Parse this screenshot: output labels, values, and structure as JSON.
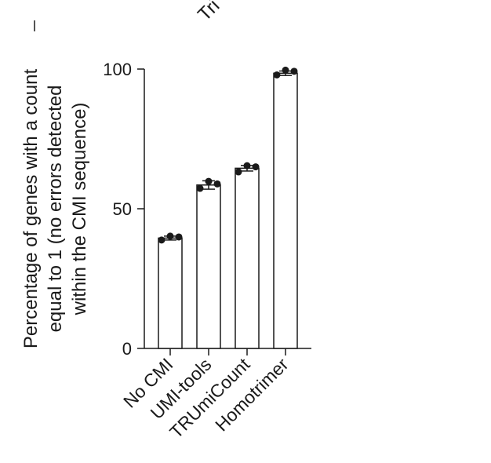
{
  "top_fragment": "Tri",
  "chart_data": {
    "type": "bar",
    "title": "",
    "xlabel": "",
    "ylabel_lines": [
      "Percentage of genes with a count",
      "equal to 1 (no errors detected",
      "within the CMI sequence)"
    ],
    "ylim": [
      0,
      100
    ],
    "yticks": [
      0,
      50,
      100
    ],
    "categories": [
      "No CMI",
      "UMI-tools",
      "TRUmiCount",
      "Homotrimer"
    ],
    "values": [
      39.5,
      58.5,
      64.5,
      98.5
    ],
    "errors": [
      0.7,
      1.5,
      1.0,
      0.8
    ],
    "replicates": [
      [
        38.8,
        40.2,
        39.9
      ],
      [
        57.3,
        59.8,
        58.9
      ],
      [
        63.2,
        65.4,
        65.0
      ],
      [
        97.9,
        99.6,
        99.2
      ]
    ],
    "colors": {
      "bar_fill": "#ffffff",
      "stroke": "#1a1a1a",
      "dot": "#1a1a1a"
    },
    "grid": false,
    "legend": "none"
  }
}
